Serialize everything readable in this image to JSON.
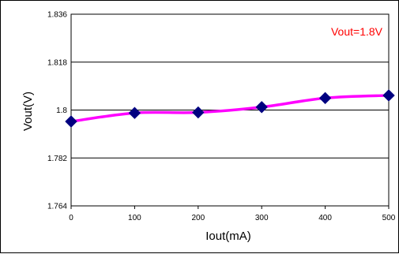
{
  "chart_data": {
    "type": "line",
    "title": "",
    "xlabel": "Iout(mA)",
    "ylabel": "Vout(V)",
    "xlim": [
      0,
      500
    ],
    "ylim": [
      1.764,
      1.836
    ],
    "x_ticks": [
      "0",
      "100",
      "200",
      "300",
      "400",
      "500"
    ],
    "y_ticks": [
      "1.836",
      "1.818",
      "1.8",
      "1.782",
      "1.764"
    ],
    "y_tick_values": [
      1.836,
      1.818,
      1.8,
      1.782,
      1.764
    ],
    "grid": "horizontal",
    "annotation": "Vout=1.8V",
    "series": [
      {
        "x": [
          0,
          100,
          200,
          300,
          400,
          500
        ],
        "values": [
          1.7957,
          1.7989,
          1.7991,
          1.8011,
          1.8045,
          1.8055
        ],
        "line_color": "#ff00ff",
        "marker_color": "#000080",
        "marker": "diamond"
      }
    ]
  },
  "colors": {
    "plot_background": "#ffffff",
    "grid": "#000000",
    "annotation": "#ff0000"
  }
}
